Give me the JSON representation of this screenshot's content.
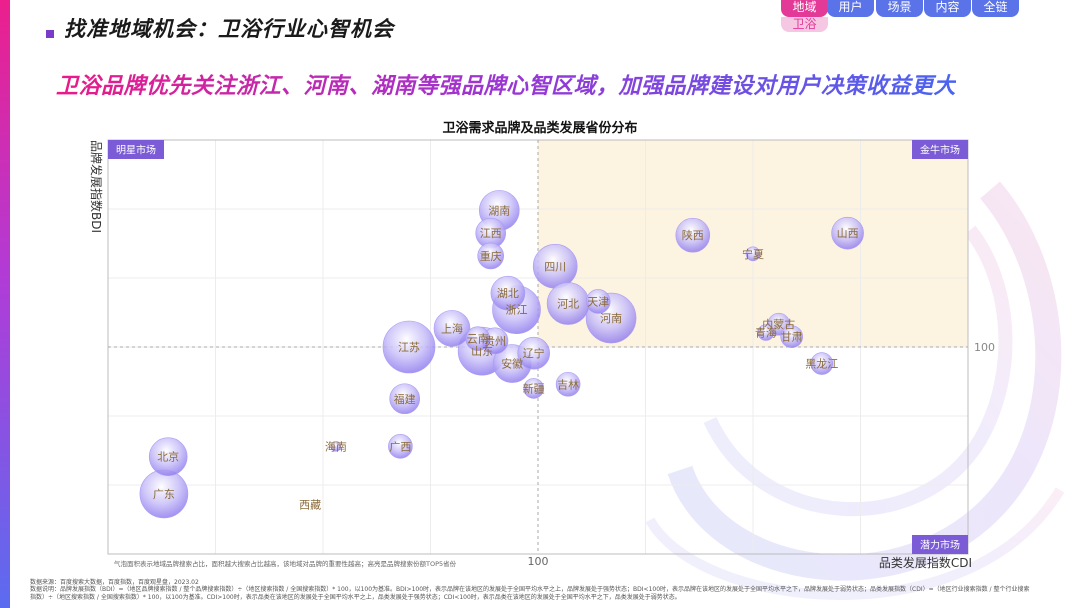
{
  "header": {
    "title": "找准地域机会：卫浴行业心智机会",
    "headline": "卫浴品牌优先关注浙江、河南、湖南等强品牌心智区域，加强品牌建设对用户决策收益更大"
  },
  "nav": {
    "tabs": [
      {
        "label": "地域",
        "active": true
      },
      {
        "label": "用户",
        "active": false
      },
      {
        "label": "场景",
        "active": false
      },
      {
        "label": "内容",
        "active": false
      },
      {
        "label": "全链",
        "active": false
      }
    ],
    "sub_label": "卫浴"
  },
  "chart_data": {
    "type": "scatter",
    "title": "卫浴需求品牌及品类发展省份分布",
    "xlabel": "品类发展指数CDI",
    "ylabel": "品牌发展指数BDI",
    "x_ref": 100,
    "y_ref": 100,
    "x_ref_label": "100",
    "y_ref_label": "100",
    "xlim": [
      0,
      200
    ],
    "ylim": [
      0,
      200
    ],
    "quadrants": {
      "top_left": "明星市场",
      "top_right": "金牛市场",
      "bottom_right": "潜力市场"
    },
    "highlight_color": "#fdf3e1",
    "bubble_color": "#8d78ee",
    "note": "气泡面积表示地域品牌搜索占比，面积越大搜索占比越高，该地域对品牌的重要性越高；高亮是品牌搜索份额TOP5省份",
    "points": [
      {
        "name": "湖南",
        "x": 91,
        "y": 166,
        "size": 20
      },
      {
        "name": "江西",
        "x": 89,
        "y": 155,
        "size": 15
      },
      {
        "name": "重庆",
        "x": 89,
        "y": 144,
        "size": 13
      },
      {
        "name": "四川",
        "x": 104,
        "y": 139,
        "size": 22
      },
      {
        "name": "陕西",
        "x": 136,
        "y": 154,
        "size": 17
      },
      {
        "name": "宁夏",
        "x": 150,
        "y": 145,
        "size": 7
      },
      {
        "name": "山西",
        "x": 172,
        "y": 155,
        "size": 16
      },
      {
        "name": "湖北",
        "x": 93,
        "y": 126,
        "size": 17
      },
      {
        "name": "浙江",
        "x": 95,
        "y": 118,
        "size": 24
      },
      {
        "name": "河北",
        "x": 107,
        "y": 121,
        "size": 21
      },
      {
        "name": "天津",
        "x": 114,
        "y": 122,
        "size": 12
      },
      {
        "name": "河南",
        "x": 117,
        "y": 114,
        "size": 25
      },
      {
        "name": "内蒙古",
        "x": 156,
        "y": 111,
        "size": 11
      },
      {
        "name": "青海",
        "x": 153,
        "y": 107,
        "size": 8
      },
      {
        "name": "甘肃",
        "x": 159,
        "y": 105,
        "size": 11
      },
      {
        "name": "上海",
        "x": 80,
        "y": 109,
        "size": 18
      },
      {
        "name": "云南",
        "x": 86,
        "y": 104,
        "size": 12
      },
      {
        "name": "贵州",
        "x": 90,
        "y": 103,
        "size": 13
      },
      {
        "name": "江苏",
        "x": 70,
        "y": 100,
        "size": 26
      },
      {
        "name": "山东",
        "x": 87,
        "y": 98,
        "size": 24
      },
      {
        "name": "辽宁",
        "x": 99,
        "y": 97,
        "size": 16
      },
      {
        "name": "安徽",
        "x": 94,
        "y": 92,
        "size": 19
      },
      {
        "name": "黑龙江",
        "x": 166,
        "y": 92,
        "size": 11
      },
      {
        "name": "吉林",
        "x": 107,
        "y": 82,
        "size": 12
      },
      {
        "name": "新疆",
        "x": 99,
        "y": 80,
        "size": 10
      },
      {
        "name": "福建",
        "x": 69,
        "y": 75,
        "size": 15
      },
      {
        "name": "海南",
        "x": 53,
        "y": 52,
        "size": 5
      },
      {
        "name": "广西",
        "x": 68,
        "y": 52,
        "size": 12
      },
      {
        "name": "北京",
        "x": 14,
        "y": 47,
        "size": 19
      },
      {
        "name": "广东",
        "x": 13,
        "y": 29,
        "size": 24
      },
      {
        "name": "西藏",
        "x": 47,
        "y": 24,
        "size": 0
      }
    ]
  },
  "footer": {
    "source": "数据来源：百度搜索大数据，百度指数，百度观星盘，2023.02",
    "description": "数据说明：品牌发展指数（BDI）=（地区品牌搜索指数 / 整个品牌搜索指数）÷（地区搜索指数 / 全国搜索指数）* 100，以100为基准。BDI>100时，表示品牌在该地区的发展处于全国平均水平之上，品牌发展处于强势状态；BDI<100时，表示品牌在该地区的发展处于全国平均水平之下，品牌发展处于弱势状态；品类发展指数（CDI）=（地区行业搜索指数 / 整个行业搜索指数）÷（地区搜索指数 / 全国搜索指数）* 100，以100为基准。CDI>100时，表示品类在该地区的发展处于全国平均水平之上，品类发展处于强势状态；CDI<100时，表示品类在该地区的发展处于全国平均水平之下，品类发展处于弱势状态。"
  }
}
